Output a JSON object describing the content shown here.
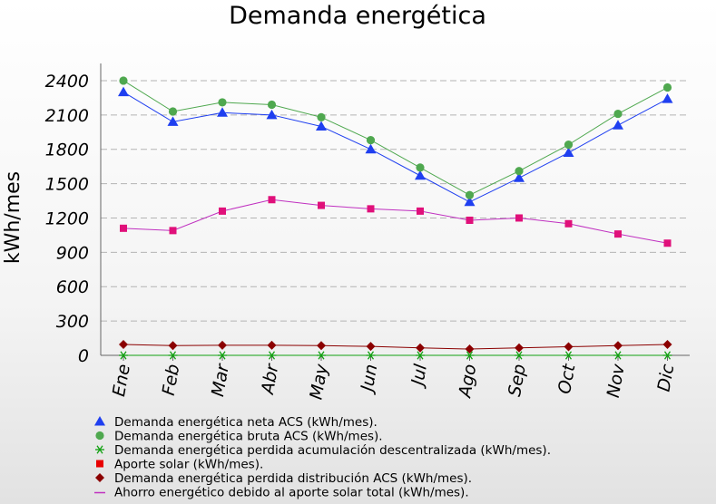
{
  "chart_data": {
    "type": "line",
    "title": "Demanda energética",
    "xlabel": "",
    "ylabel": "kWh/mes",
    "ylim": [
      0,
      2550
    ],
    "yticks": [
      0,
      300,
      600,
      900,
      1200,
      1500,
      1800,
      2100,
      2400
    ],
    "categories": [
      "Ene",
      "Feb",
      "Mar",
      "Abr",
      "May",
      "Jun",
      "Jul",
      "Ago",
      "Sep",
      "Oct",
      "Nov",
      "Dic"
    ],
    "grid": true,
    "legend_position": "bottom",
    "series": [
      {
        "name": "Demanda energética neta ACS (kWh/mes).",
        "marker": "triangle",
        "color": "#1f3ff0",
        "values": [
          2300,
          2040,
          2120,
          2100,
          2000,
          1800,
          1570,
          1340,
          1550,
          1770,
          2010,
          2240
        ]
      },
      {
        "name": "Demanda energética bruta ACS (kWh/mes).",
        "marker": "circle",
        "color": "#4fa84f",
        "values": [
          2400,
          2130,
          2210,
          2190,
          2080,
          1880,
          1640,
          1400,
          1610,
          1840,
          2110,
          2340
        ]
      },
      {
        "name": "Demanda energética perdida acumulación descentralizada (kWh/mes).",
        "marker": "star",
        "color": "#10a010",
        "values": [
          0,
          0,
          0,
          0,
          0,
          0,
          0,
          0,
          0,
          0,
          0,
          0
        ]
      },
      {
        "name": "Aporte solar (kWh/mes).",
        "marker": "square",
        "color": "#e80000",
        "values": [
          null,
          null,
          null,
          null,
          null,
          null,
          null,
          null,
          null,
          null,
          null,
          null
        ]
      },
      {
        "name": "Demanda energética perdida distribución ACS (kWh/mes).",
        "marker": "diamond",
        "color": "#8b0000",
        "values": [
          95,
          85,
          88,
          88,
          85,
          78,
          65,
          55,
          65,
          75,
          85,
          95
        ]
      },
      {
        "name": "Ahorro energético debido al aporte solar total (kWh/mes).",
        "marker": "square",
        "color": "#c030c0",
        "markerColor": "#e0107a",
        "values": [
          1110,
          1090,
          1260,
          1360,
          1310,
          1280,
          1260,
          1180,
          1200,
          1150,
          1060,
          980
        ]
      }
    ]
  }
}
